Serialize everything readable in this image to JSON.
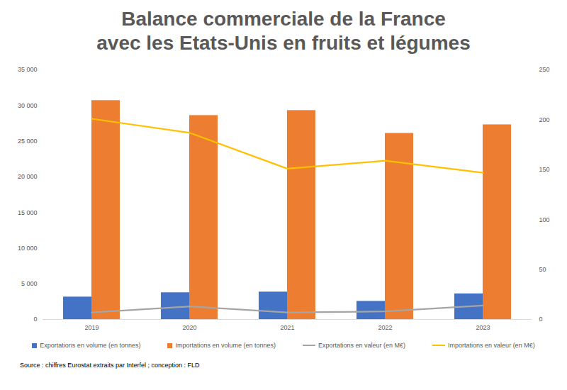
{
  "chart_data": {
    "type": "bar",
    "title": "Balance commerciale de la France\navec les Etats-Unis en fruits et légumes",
    "caption": "Source : chiffres Eurostat extraits par Interfel ; conception : FLD",
    "categories": [
      "2019",
      "2020",
      "2021",
      "2022",
      "2023"
    ],
    "series": [
      {
        "name": "Exportations en volume (en tonnes)",
        "type": "bar",
        "color": "#4472c4",
        "values": [
          3150,
          3750,
          3850,
          2550,
          3600
        ]
      },
      {
        "name": "Importations en volume (en tonnes)",
        "type": "bar",
        "color": "#ed7d31",
        "values": [
          30700,
          28600,
          29300,
          26100,
          27300
        ]
      },
      {
        "name": "Exportations en valeur (en M€)",
        "type": "line",
        "axis": "y2",
        "color": "#a5a5a5",
        "values": [
          7,
          13,
          7,
          8,
          14
        ]
      },
      {
        "name": "Importations en valeur (en M€)",
        "type": "line",
        "axis": "y2",
        "color": "#ffc000",
        "values": [
          201,
          187,
          151,
          159,
          147
        ]
      }
    ],
    "ylim": [
      0,
      35000
    ],
    "yticks": [
      0,
      {
        "value": 5000,
        "label": "5 000"
      },
      {
        "value": 10000,
        "label": "10 000"
      },
      {
        "value": 15000,
        "label": "15 000"
      },
      {
        "value": 20000,
        "label": "20 000"
      },
      {
        "value": 25000,
        "label": "25 000"
      },
      {
        "value": 30000,
        "label": "30 000"
      },
      {
        "value": 35000,
        "label": "35 000"
      }
    ],
    "y2lim": [
      0,
      250
    ],
    "y2ticks": [
      0,
      50,
      100,
      150,
      200,
      250
    ],
    "grid": false,
    "legend": "bottom"
  }
}
